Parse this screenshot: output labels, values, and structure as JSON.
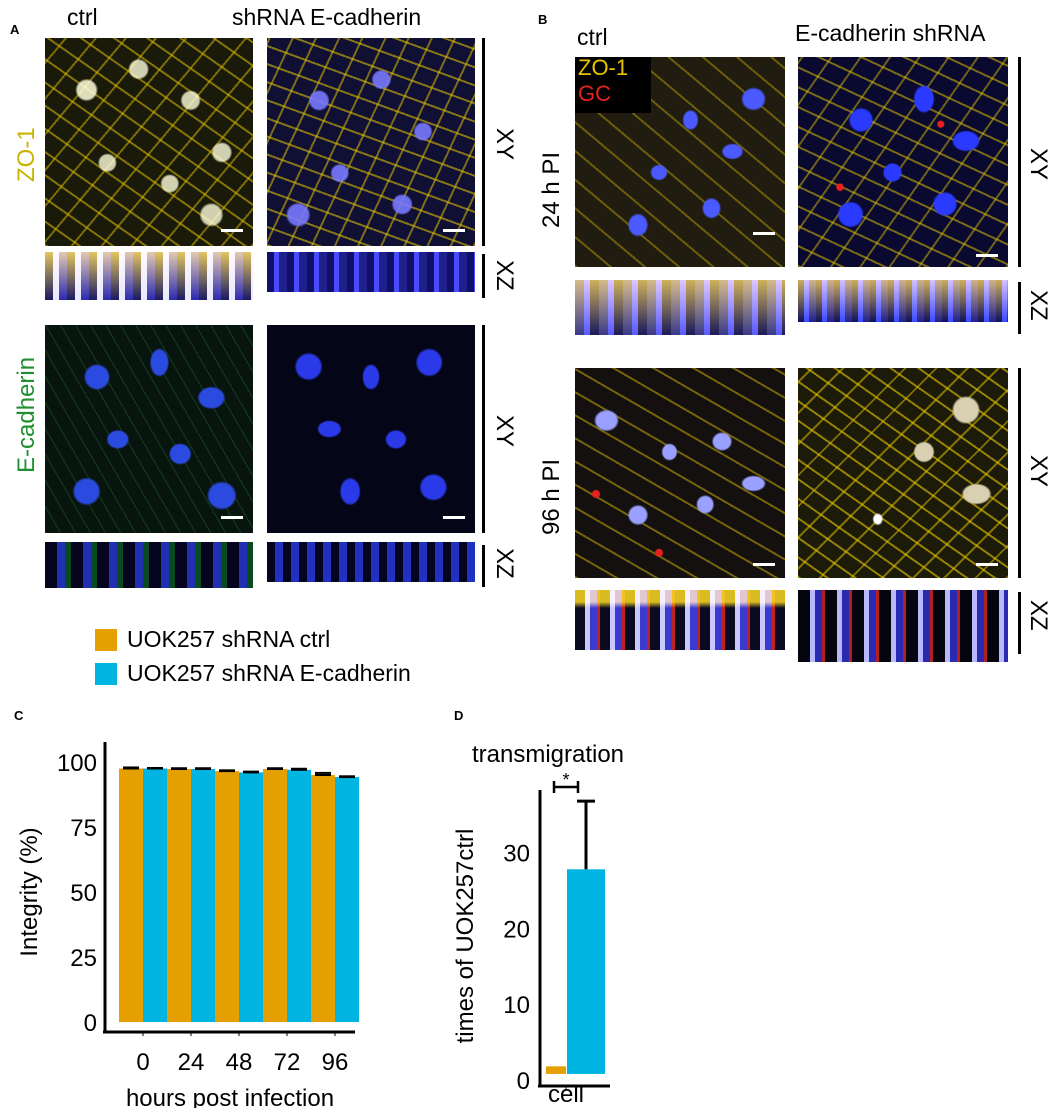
{
  "panel_a": {
    "label": "A",
    "col_ctrl": "ctrl",
    "col_shrna": "shRNA E-cadherin",
    "row1_label": "ZO-1",
    "row2_label": "E-cadherin",
    "xy": "XY",
    "xz": "XZ"
  },
  "panel_b": {
    "label": "B",
    "col_ctrl": "ctrl",
    "col_shrna": "E-cadherin shRNA",
    "legend_zo1": "ZO-1",
    "legend_gc": "GC",
    "row1_label": "24 h PI",
    "row2_label": "96 h PI",
    "xy": "XY",
    "xz": "XZ"
  },
  "legend": {
    "items": [
      {
        "label": "UOK257 shRNA ctrl",
        "color": "#E69F00"
      },
      {
        "label": "UOK257 shRNA E-cadherin",
        "color": "#00B5E2"
      }
    ]
  },
  "colors": {
    "ctrl": "#E69F00",
    "shrna": "#00B5E2",
    "zo1": "#e8c400",
    "gc": "#e8201e",
    "ecad": "#1f8f2f"
  },
  "chart_data": [
    {
      "panel": "C",
      "type": "bar",
      "categories": [
        "0",
        "24",
        "48",
        "72",
        "96"
      ],
      "series": [
        {
          "name": "UOK257 shRNA ctrl",
          "values": [
            97.5,
            97.3,
            96.5,
            97.3,
            95.0
          ],
          "errors": [
            0.4,
            0.3,
            0.3,
            0.3,
            0.8
          ]
        },
        {
          "name": "UOK257 shRNA E-cadherin",
          "values": [
            97.5,
            97.3,
            96.0,
            97.0,
            94.2
          ],
          "errors": [
            0.2,
            0.3,
            0.3,
            0.4,
            0.3
          ]
        }
      ],
      "xlabel": "hours post infection",
      "ylabel": "Integrity (%)",
      "yticks": [
        0,
        25,
        50,
        75,
        100
      ],
      "ylim": [
        0,
        100
      ]
    },
    {
      "panel": "D",
      "type": "bar",
      "title": "transmigration",
      "categories": [
        "cell"
      ],
      "series": [
        {
          "name": "UOK257 shRNA ctrl",
          "values": [
            1
          ]
        },
        {
          "name": "UOK257 shRNA E-cadherin",
          "values": [
            27
          ],
          "errors": [
            9
          ]
        }
      ],
      "xlabel": "cell",
      "ylabel": "times of UOK257ctrl",
      "yticks": [
        0,
        10,
        20,
        30
      ],
      "ylim": [
        0,
        38
      ],
      "significance": "*"
    }
  ]
}
